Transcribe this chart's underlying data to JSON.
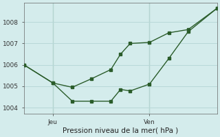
{
  "title": "",
  "xlabel": "Pression niveau de la mer( hPa )",
  "ylabel": "",
  "background_color": "#d4ecec",
  "grid_color": "#b8d8d8",
  "line_color": "#2a5c2a",
  "ylim": [
    1003.7,
    1008.9
  ],
  "xlim": [
    0,
    10
  ],
  "yticks": [
    1004,
    1005,
    1006,
    1007,
    1008
  ],
  "xtick_positions": [
    1.5,
    6.5
  ],
  "xtick_labels": [
    "Jeu",
    "Ven"
  ],
  "vline_positions": [
    1.5,
    6.5
  ],
  "line1_x": [
    0,
    1.5,
    2.5,
    3.5,
    4.5,
    5.0,
    5.5,
    6.5,
    7.5,
    8.5,
    10
  ],
  "line1_y": [
    1006.0,
    1005.15,
    1004.3,
    1004.3,
    1004.3,
    1004.85,
    1004.78,
    1005.1,
    1006.3,
    1007.55,
    1008.65
  ],
  "line2_x": [
    0,
    1.5,
    2.5,
    3.5,
    4.5,
    5.0,
    5.5,
    6.5,
    7.5,
    8.5,
    10
  ],
  "line2_y": [
    1006.0,
    1005.15,
    1004.95,
    1005.35,
    1005.78,
    1006.5,
    1007.0,
    1007.05,
    1007.5,
    1007.65,
    1008.65
  ],
  "marker_size": 3,
  "linewidth": 1.0
}
